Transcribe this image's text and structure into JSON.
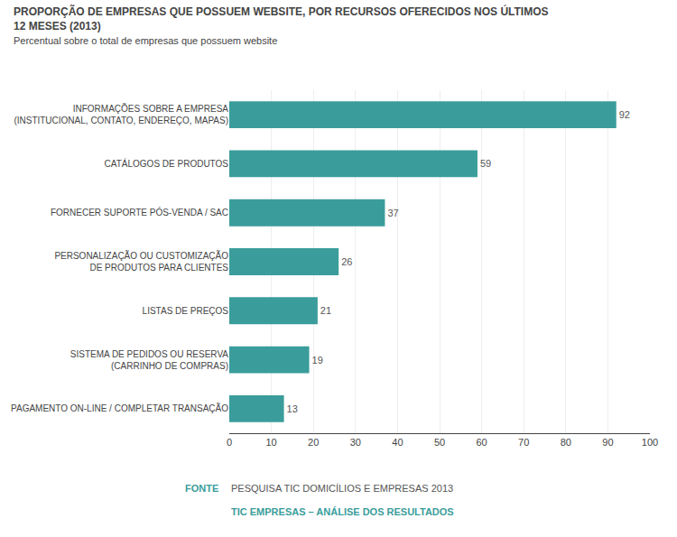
{
  "chart_data": {
    "type": "bar",
    "orientation": "horizontal",
    "title": "PROPORÇÃO DE EMPRESAS QUE POSSUEM WEBSITE, POR RECURSOS OFERECIDOS NOS ÚLTIMOS\n12 MESES (2013)",
    "subtitle": "Percentual sobre o total de empresas que possuem website",
    "categories": [
      "PAGAMENTO ON-LINE / COMPLETAR TRANSAÇÃO",
      "SISTEMA DE PEDIDOS OU RESERVA\n(CARRINHO DE COMPRAS)",
      "LISTAS DE PREÇOS",
      "PERSONALIZAÇÃO OU CUSTOMIZAÇÃO\nDE PRODUTOS PARA CLIENTES",
      "FORNECER SUPORTE PÓS-VENDA / SAC",
      "CATÁLOGOS DE PRODUTOS",
      "INFORMAÇÕES SOBRE A EMPRESA\n(INSTITUCIONAL, CONTATO, ENDEREÇO, MAPAS)"
    ],
    "values": [
      13,
      19,
      21,
      26,
      37,
      59,
      92
    ],
    "color": "#3a9d9b",
    "xlim": [
      0,
      100
    ],
    "xticks": [
      0,
      10,
      20,
      30,
      40,
      50,
      60,
      70,
      80,
      90,
      100
    ],
    "grid": true,
    "data_labels": true,
    "annotations": [
      "FONTE",
      "PESQUISA TIC DOMICÍLIOS E EMPRESAS 2013",
      "TIC EMPRESAS – ANÁLISE DOS RESULTADOS"
    ]
  }
}
